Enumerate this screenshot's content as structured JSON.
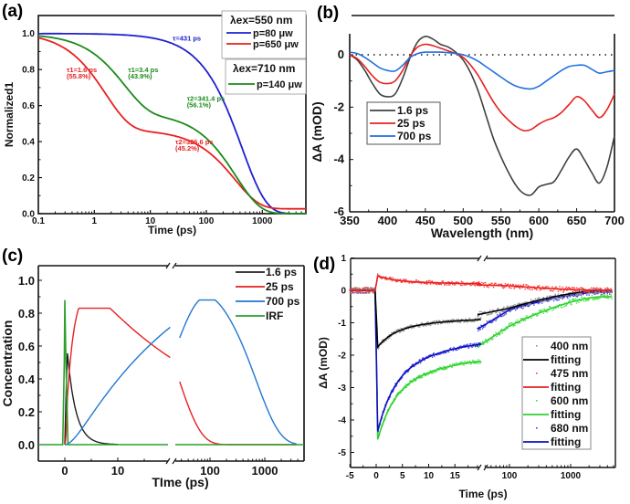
{
  "chart_data": [
    {
      "panel": "(a)",
      "type": "line",
      "title": "",
      "xlabel": "Time (ps)",
      "ylabel": "Normalized1",
      "xscale": "log",
      "xlim": [
        0.1,
        6000
      ],
      "ylim": [
        0.0,
        1.1
      ],
      "xticks": [
        "0.1",
        "1",
        "10",
        "100",
        "1000"
      ],
      "yticks": [
        "0.0",
        "0.2",
        "0.4",
        "0.6",
        "0.8",
        "1.0"
      ],
      "legend_groups": [
        {
          "header": "λex=550 nm",
          "header_color": "#000000",
          "entries": [
            {
              "label": "p=80 μw",
              "color": "#2020d0"
            },
            {
              "label": "p=650 μw",
              "color": "#e82020"
            }
          ]
        },
        {
          "header": "λex=710 nm",
          "header_color": "#1a8a1a",
          "entries": [
            {
              "label": "p=140 μw",
              "color": "#1a8a1a"
            }
          ]
        }
      ],
      "legend_position": "top-right",
      "series": [
        {
          "name": "p=80 μw",
          "color": "#2020d0",
          "model": "mono",
          "taus": [
            431
          ],
          "amps": [
            1.0
          ],
          "offset": 0.0
        },
        {
          "name": "p=650 μw",
          "color": "#e82020",
          "model": "bi",
          "taus": [
            1.6,
            326.6
          ],
          "amps": [
            0.558,
            0.452
          ],
          "offset": 0.027
        },
        {
          "name": "p=140 μw",
          "color": "#1a8a1a",
          "model": "bi",
          "taus": [
            3.4,
            341.4
          ],
          "amps": [
            0.439,
            0.561
          ],
          "offset": 0.0
        }
      ],
      "annotations": [
        {
          "text": "τ=431 ps",
          "color": "#2020d0",
          "x": 25,
          "y": 0.96
        },
        {
          "text": "τ1=1.6 ps",
          "color": "#e82020",
          "x": 0.32,
          "y": 0.785
        },
        {
          "text": "(55.8%)",
          "color": "#e82020",
          "x": 0.32,
          "y": 0.75
        },
        {
          "text": "τ1=3.4 ps",
          "color": "#1a8a1a",
          "x": 4.0,
          "y": 0.785
        },
        {
          "text": "(43.9%)",
          "color": "#1a8a1a",
          "x": 4.0,
          "y": 0.75
        },
        {
          "text": "τ2=341.4 ps",
          "color": "#1a8a1a",
          "x": 45,
          "y": 0.625
        },
        {
          "text": "(56.1%)",
          "color": "#1a8a1a",
          "x": 45,
          "y": 0.59
        },
        {
          "text": "τ2=326.6 ps",
          "color": "#e82020",
          "x": 28,
          "y": 0.385
        },
        {
          "text": "(45.2%)",
          "color": "#e82020",
          "x": 28,
          "y": 0.35
        }
      ]
    },
    {
      "panel": "(b)",
      "type": "line",
      "title": "",
      "xlabel": "Wavelength (nm)",
      "ylabel": "ΔA (mOD)",
      "xlim": [
        350,
        700
      ],
      "ylim": [
        -6,
        0.8
      ],
      "xticks": [
        "350",
        "400",
        "450",
        "500",
        "550",
        "600",
        "650",
        "700"
      ],
      "yticks": [
        "-6",
        "-4",
        "-2",
        "0"
      ],
      "zero_line": "dotted",
      "legend_position": "middle-left",
      "series": [
        {
          "name": "1.6 ps",
          "color": "#404040",
          "x": [
            350,
            360,
            370,
            380,
            390,
            400,
            410,
            420,
            430,
            440,
            450,
            460,
            470,
            480,
            490,
            500,
            510,
            520,
            530,
            540,
            550,
            560,
            570,
            580,
            590,
            600,
            610,
            620,
            630,
            640,
            650,
            660,
            670,
            680,
            690,
            700
          ],
          "y": [
            0,
            -0.2,
            -0.6,
            -1.1,
            -1.5,
            -1.6,
            -1.5,
            -0.9,
            -0.1,
            0.5,
            0.7,
            0.6,
            0.4,
            0.3,
            0.1,
            -0.2,
            -0.7,
            -1.4,
            -2.3,
            -3.2,
            -3.9,
            -4.5,
            -5.0,
            -5.3,
            -5.35,
            -5.05,
            -4.95,
            -4.85,
            -4.4,
            -3.9,
            -3.6,
            -4.0,
            -4.5,
            -4.9,
            -4.3,
            -3.1
          ]
        },
        {
          "name": "25 ps",
          "color": "#e82020",
          "x": [
            350,
            360,
            370,
            380,
            390,
            400,
            410,
            420,
            430,
            440,
            450,
            460,
            470,
            480,
            490,
            500,
            510,
            520,
            530,
            540,
            550,
            560,
            570,
            580,
            590,
            600,
            610,
            620,
            630,
            640,
            650,
            660,
            670,
            680,
            690,
            700
          ],
          "y": [
            0,
            -0.15,
            -0.45,
            -0.8,
            -1.05,
            -1.1,
            -1.0,
            -0.6,
            -0.05,
            0.3,
            0.4,
            0.35,
            0.25,
            0.15,
            0.05,
            -0.1,
            -0.4,
            -0.8,
            -1.3,
            -1.8,
            -2.2,
            -2.5,
            -2.75,
            -2.9,
            -2.85,
            -2.65,
            -2.5,
            -2.4,
            -2.2,
            -1.9,
            -1.6,
            -1.75,
            -2.1,
            -2.4,
            -2.1,
            -1.5
          ]
        },
        {
          "name": "700 ps",
          "color": "#2070e0",
          "x": [
            350,
            360,
            370,
            380,
            390,
            400,
            410,
            420,
            430,
            440,
            450,
            460,
            470,
            480,
            490,
            500,
            510,
            520,
            530,
            540,
            550,
            560,
            570,
            580,
            590,
            600,
            610,
            620,
            630,
            640,
            650,
            660,
            670,
            680,
            690,
            700
          ],
          "y": [
            0.1,
            0.05,
            -0.1,
            -0.3,
            -0.5,
            -0.6,
            -0.62,
            -0.4,
            -0.1,
            0.05,
            0.1,
            0.1,
            0.1,
            0.08,
            0.05,
            0.0,
            -0.1,
            -0.25,
            -0.45,
            -0.65,
            -0.85,
            -1.05,
            -1.2,
            -1.28,
            -1.3,
            -1.2,
            -1.0,
            -0.8,
            -0.6,
            -0.45,
            -0.4,
            -0.4,
            -0.55,
            -0.7,
            -0.65,
            -0.6
          ]
        }
      ]
    },
    {
      "panel": "(c)",
      "type": "line",
      "title": "",
      "xlabel": "TIme (ps)",
      "ylabel": "Concentration",
      "xscale": "linear-then-log (axis break)",
      "xlim": [
        -5,
        4000
      ],
      "ylim": [
        -0.1,
        1.1
      ],
      "xticks": [
        "0",
        "10",
        "100",
        "1000"
      ],
      "yticks": [
        "0.0",
        "0.2",
        "0.4",
        "0.6",
        "0.8",
        "1.0"
      ],
      "legend_position": "top-right",
      "series": [
        {
          "name": "1.6 ps",
          "color": "#202020",
          "peak": {
            "x": 0.5,
            "y": 0.76
          }
        },
        {
          "name": "25 ps",
          "color": "#e82020",
          "peak": {
            "x": 4.0,
            "y": 0.83
          }
        },
        {
          "name": "700 ps",
          "color": "#1f78d1",
          "peak": {
            "x": 95,
            "y": 0.88
          }
        },
        {
          "name": "IRF",
          "color": "#2ca02c",
          "peak": {
            "x": 0.0,
            "y": 0.88
          }
        }
      ]
    },
    {
      "panel": "(d)",
      "type": "scatter",
      "title": "",
      "xlabel": "Time (ps)",
      "ylabel": "ΔA (mOD)",
      "xscale": "linear-then-log (axis break)",
      "xlim": [
        -5,
        5000
      ],
      "ylim": [
        -5.5,
        1
      ],
      "xticks": [
        "-5",
        "0",
        "5",
        "10",
        "15",
        "100",
        "1000"
      ],
      "yticks": [
        "-5",
        "-4",
        "-3",
        "-2",
        "-1",
        "0",
        "1"
      ],
      "legend_position": "bottom-right",
      "series": [
        {
          "name": "400 nm",
          "fit_label": "fitting",
          "color": "#909090",
          "fit_color": "#000000",
          "t0_min": -1.75,
          "plateau_20ps": -0.82,
          "at_100ps": -0.55,
          "end": 0.0
        },
        {
          "name": "475 nm",
          "fit_label": "fitting",
          "color": "#ff4040",
          "fit_color": "#e82020",
          "t0_max": 0.45,
          "plateau_20ps": 0.18,
          "at_100ps": 0.14,
          "end": 0.0
        },
        {
          "name": "600 nm",
          "fit_label": "fitting",
          "color": "#40e040",
          "fit_color": "#30d030",
          "t0_min": -4.6,
          "plateau_20ps": -1.95,
          "at_100ps": -1.1,
          "end": -0.2
        },
        {
          "name": "680 nm",
          "fit_label": "fitting",
          "color": "#4040e0",
          "fit_color": "#1010c0",
          "t0_min": -4.35,
          "plateau_20ps": -1.4,
          "at_100ps": -0.6,
          "end": -0.05
        }
      ]
    }
  ],
  "panel_labels": [
    "(a)",
    "(b)",
    "(c)",
    "(d)"
  ]
}
